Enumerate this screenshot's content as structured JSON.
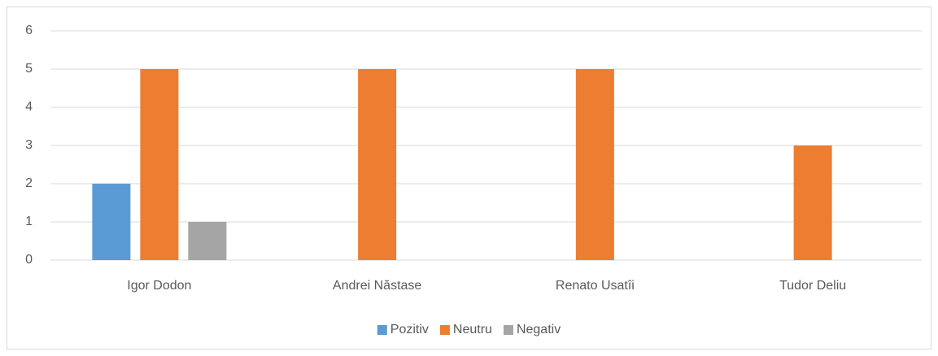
{
  "chart_data": {
    "type": "bar",
    "categories": [
      "Igor Dodon",
      "Andrei Năstase",
      "Renato Usatîi",
      "Tudor Deliu"
    ],
    "series": [
      {
        "name": "Pozitiv",
        "color": "#5b9bd5",
        "values": [
          2,
          0,
          0,
          0
        ]
      },
      {
        "name": "Neutru",
        "color": "#ed7d31",
        "values": [
          5,
          5,
          5,
          3
        ]
      },
      {
        "name": "Negativ",
        "color": "#a5a5a5",
        "values": [
          1,
          0,
          0,
          0
        ]
      }
    ],
    "ylim": [
      0,
      6
    ],
    "yticks": [
      0,
      1,
      2,
      3,
      4,
      5,
      6
    ],
    "grid": true,
    "legend": "bottom"
  }
}
